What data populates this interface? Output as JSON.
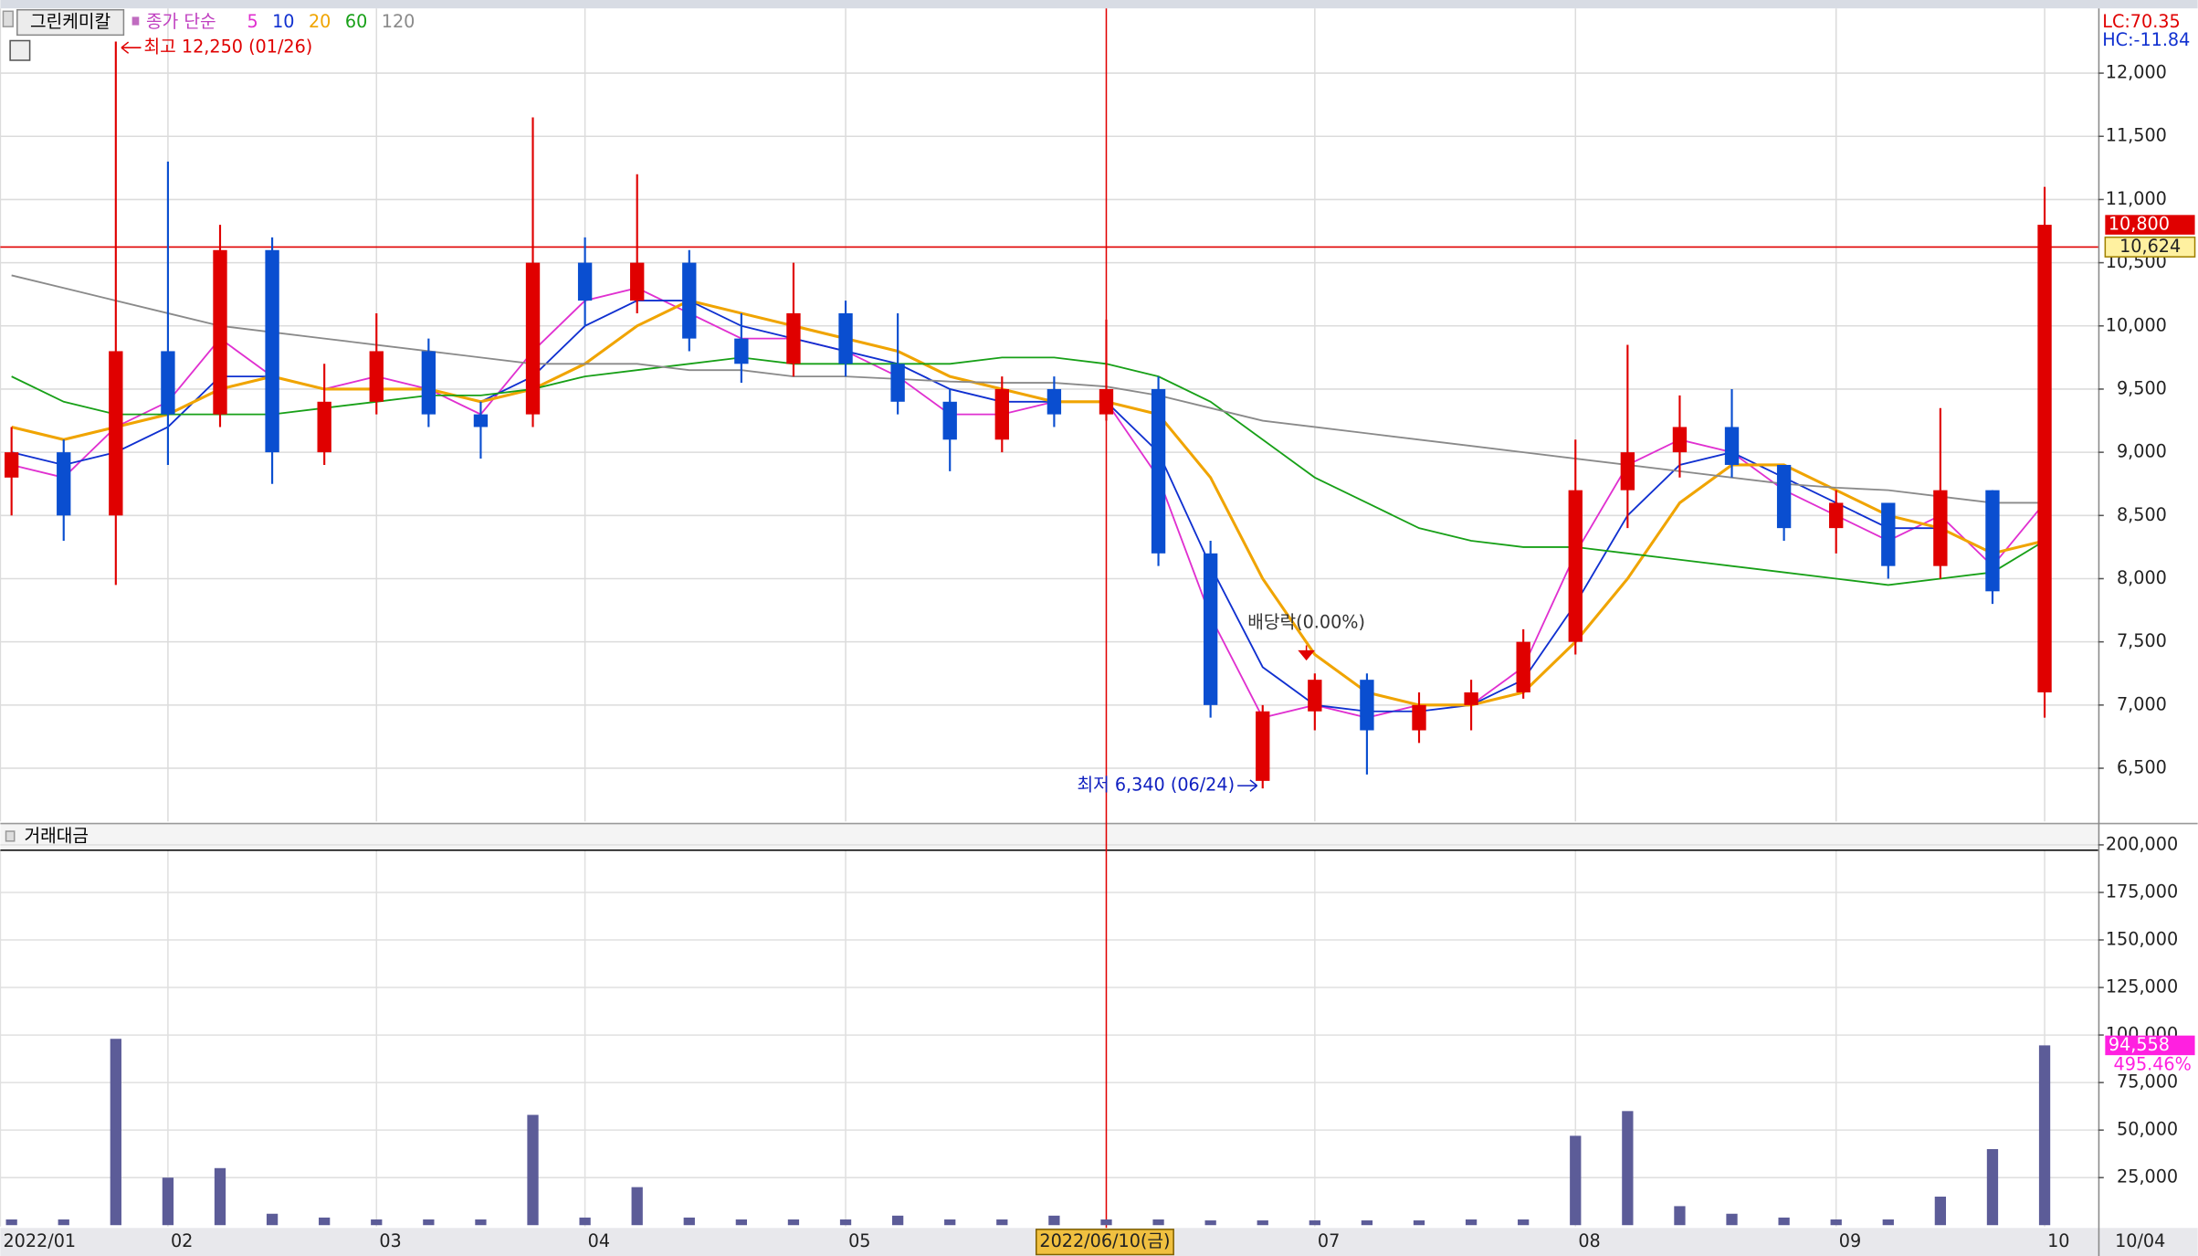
{
  "chart_data": [
    {
      "type": "candlestick",
      "title": "그린케미칼",
      "legend_title": "종가 단순",
      "categories": [
        "2022/01",
        null,
        null,
        "02",
        null,
        null,
        null,
        "03",
        null,
        null,
        null,
        "04",
        null,
        null,
        null,
        null,
        "05",
        null,
        null,
        null,
        null,
        null,
        null,
        null,
        null,
        "07",
        null,
        null,
        null,
        null,
        "08",
        null,
        null,
        null,
        null,
        "09",
        null,
        null,
        null,
        "10"
      ],
      "x_end_label": "10/04",
      "open": [
        8800,
        9000,
        8500,
        9800,
        9300,
        10600,
        9000,
        9400,
        9800,
        9300,
        9300,
        10500,
        10200,
        10500,
        9900,
        9700,
        10100,
        9700,
        9400,
        9100,
        9500,
        9300,
        9500,
        8200,
        6400,
        6950,
        7200,
        6800,
        7000,
        7100,
        7500,
        8700,
        9000,
        9200,
        8900,
        8400,
        8600,
        8100,
        8700,
        7100
      ],
      "high": [
        9200,
        9100,
        12250,
        11300,
        10800,
        10700,
        9700,
        10100,
        9900,
        9400,
        11650,
        10700,
        11200,
        10600,
        10100,
        10500,
        10200,
        10100,
        9500,
        9600,
        9600,
        10050,
        9600,
        8300,
        7000,
        7250,
        7250,
        7100,
        7200,
        7600,
        9100,
        9850,
        9450,
        9500,
        8900,
        8700,
        8600,
        9350,
        8700,
        11100
      ],
      "low": [
        8500,
        8300,
        7950,
        8900,
        9200,
        8750,
        8900,
        9300,
        9200,
        8950,
        9200,
        10000,
        10100,
        9800,
        9550,
        9600,
        9600,
        9300,
        8850,
        9000,
        9200,
        9250,
        8100,
        6900,
        6340,
        6800,
        6450,
        6700,
        6800,
        7050,
        7400,
        8400,
        8800,
        8800,
        8300,
        8200,
        8000,
        8000,
        7800,
        6900
      ],
      "close": [
        9000,
        8500,
        9800,
        9300,
        10600,
        9000,
        9400,
        9800,
        9300,
        9200,
        10500,
        10200,
        10500,
        9900,
        9700,
        10100,
        9700,
        9400,
        9100,
        9500,
        9300,
        9500,
        8200,
        7000,
        6950,
        7200,
        6800,
        7000,
        7100,
        7500,
        8700,
        9000,
        9200,
        8900,
        8400,
        8600,
        8100,
        8700,
        7900,
        10800
      ],
      "close_labels": [
        null,
        null,
        null,
        null,
        null,
        null,
        null,
        null,
        null,
        null,
        null,
        null,
        null,
        null,
        null,
        null,
        null,
        null,
        null,
        null,
        null,
        null,
        null,
        null,
        null,
        null,
        null,
        null,
        null,
        null,
        null,
        null,
        null,
        null,
        null,
        null,
        null,
        null,
        null,
        "10,800"
      ],
      "up_color": "#e00000",
      "down_color": "#0a4ed0",
      "series": [
        {
          "name": "5",
          "color": "#e030d0",
          "values": [
            8900,
            8800,
            9200,
            9400,
            9900,
            9600,
            9500,
            9600,
            9500,
            9300,
            9800,
            10200,
            10300,
            10100,
            9900,
            9900,
            9800,
            9600,
            9300,
            9300,
            9400,
            9400,
            8800,
            7700,
            6900,
            7000,
            6900,
            7000,
            7000,
            7300,
            8200,
            8900,
            9100,
            9000,
            8700,
            8500,
            8300,
            8500,
            8100,
            8600
          ]
        },
        {
          "name": "10",
          "color": "#1030d0",
          "values": [
            9000,
            8900,
            9000,
            9200,
            9600,
            9600,
            9500,
            9500,
            9500,
            9400,
            9600,
            10000,
            10200,
            10200,
            10000,
            9900,
            9800,
            9700,
            9500,
            9400,
            9400,
            9400,
            9000,
            8100,
            7300,
            7000,
            6950,
            6950,
            7000,
            7200,
            7800,
            8500,
            8900,
            9000,
            8800,
            8600,
            8400,
            8400,
            8200,
            8300
          ]
        },
        {
          "name": "20",
          "color": "#f0a400",
          "values": [
            9200,
            9100,
            9200,
            9300,
            9500,
            9600,
            9500,
            9500,
            9500,
            9400,
            9500,
            9700,
            10000,
            10200,
            10100,
            10000,
            9900,
            9800,
            9600,
            9500,
            9400,
            9400,
            9300,
            8800,
            8000,
            7400,
            7100,
            7000,
            7000,
            7100,
            7500,
            8000,
            8600,
            8900,
            8900,
            8700,
            8500,
            8400,
            8200,
            8300
          ]
        },
        {
          "name": "60",
          "color": "#18a018",
          "values": [
            9600,
            9400,
            9300,
            9300,
            9300,
            9300,
            9350,
            9400,
            9450,
            9450,
            9500,
            9600,
            9650,
            9700,
            9750,
            9700,
            9700,
            9700,
            9700,
            9750,
            9750,
            9700,
            9600,
            9400,
            9100,
            8800,
            8600,
            8400,
            8300,
            8250,
            8250,
            8200,
            8150,
            8100,
            8050,
            8000,
            7950,
            8000,
            8050,
            8300
          ]
        },
        {
          "name": "120",
          "color": "#8a8a8a",
          "values": [
            10400,
            10300,
            10200,
            10100,
            10000,
            9950,
            9900,
            9850,
            9800,
            9750,
            9700,
            9700,
            9700,
            9650,
            9650,
            9600,
            9600,
            9580,
            9560,
            9550,
            9550,
            9520,
            9450,
            9350,
            9250,
            9200,
            9150,
            9100,
            9050,
            9000,
            8950,
            8900,
            8850,
            8800,
            8750,
            8720,
            8700,
            8650,
            8600,
            8600
          ]
        }
      ],
      "ylim": [
        6090,
        12490
      ],
      "yticks": [
        {
          "value": 6500,
          "label": "6,500"
        },
        {
          "value": 7000,
          "label": "7,000"
        },
        {
          "value": 7500,
          "label": "7,500"
        },
        {
          "value": 8000,
          "label": "8,000"
        },
        {
          "value": 8500,
          "label": "8,500"
        },
        {
          "value": 9000,
          "label": "9,000"
        },
        {
          "value": 9500,
          "label": "9,500"
        },
        {
          "value": 10000,
          "label": "10,000"
        },
        {
          "value": 10500,
          "label": "10,500"
        },
        {
          "value": 11000,
          "label": "11,000"
        },
        {
          "value": 11500,
          "label": "11,500"
        },
        {
          "value": 12000,
          "label": "12,000"
        }
      ],
      "grid": true,
      "annotations": [
        {
          "text": "최고 12,250 (01/26)",
          "index": 2,
          "anchor": "high",
          "color": "#e00000"
        },
        {
          "text": "최저 6,340 (06/24)",
          "index": 24,
          "anchor": "low",
          "color": "#1020c0"
        },
        {
          "text": "배당락(0.00%)",
          "index": 25,
          "anchor": "high",
          "color": "#333333"
        }
      ],
      "crosshair": {
        "category_index": 21,
        "label": "2022/06/10(금)",
        "price": 10624,
        "price_label": "10,624"
      },
      "lc_label": "LC:70.35",
      "hc_label": "HC:-11.84"
    },
    {
      "type": "bar",
      "title": "거래대금",
      "color": "#5c5c98",
      "values": [
        3000,
        3000,
        98000,
        25000,
        30000,
        6000,
        4000,
        3000,
        3000,
        3000,
        58000,
        4000,
        20000,
        4000,
        3000,
        3000,
        3000,
        5000,
        3000,
        3000,
        5000,
        3000,
        3000,
        2500,
        2500,
        2500,
        2500,
        2500,
        3000,
        3000,
        47000,
        60000,
        10000,
        6000,
        4000,
        3000,
        3000,
        15000,
        40000,
        94558
      ],
      "value_labels": [
        null,
        null,
        null,
        null,
        null,
        null,
        null,
        null,
        null,
        null,
        null,
        null,
        null,
        null,
        null,
        null,
        null,
        null,
        null,
        null,
        null,
        null,
        null,
        null,
        null,
        null,
        null,
        null,
        null,
        null,
        null,
        null,
        null,
        null,
        null,
        null,
        null,
        null,
        null,
        "94,558"
      ],
      "ratio_label": "495.46%",
      "ylim": [
        0,
        202000
      ],
      "yticks": [
        {
          "value": 25000,
          "label": "25,000"
        },
        {
          "value": 50000,
          "label": "50,000"
        },
        {
          "value": 75000,
          "label": "75,000"
        },
        {
          "value": 100000,
          "label": "100,000"
        },
        {
          "value": 125000,
          "label": "125,000"
        },
        {
          "value": 150000,
          "label": "150,000"
        },
        {
          "value": 175000,
          "label": "175,000"
        },
        {
          "value": 200000,
          "label": "200,000"
        }
      ]
    }
  ]
}
